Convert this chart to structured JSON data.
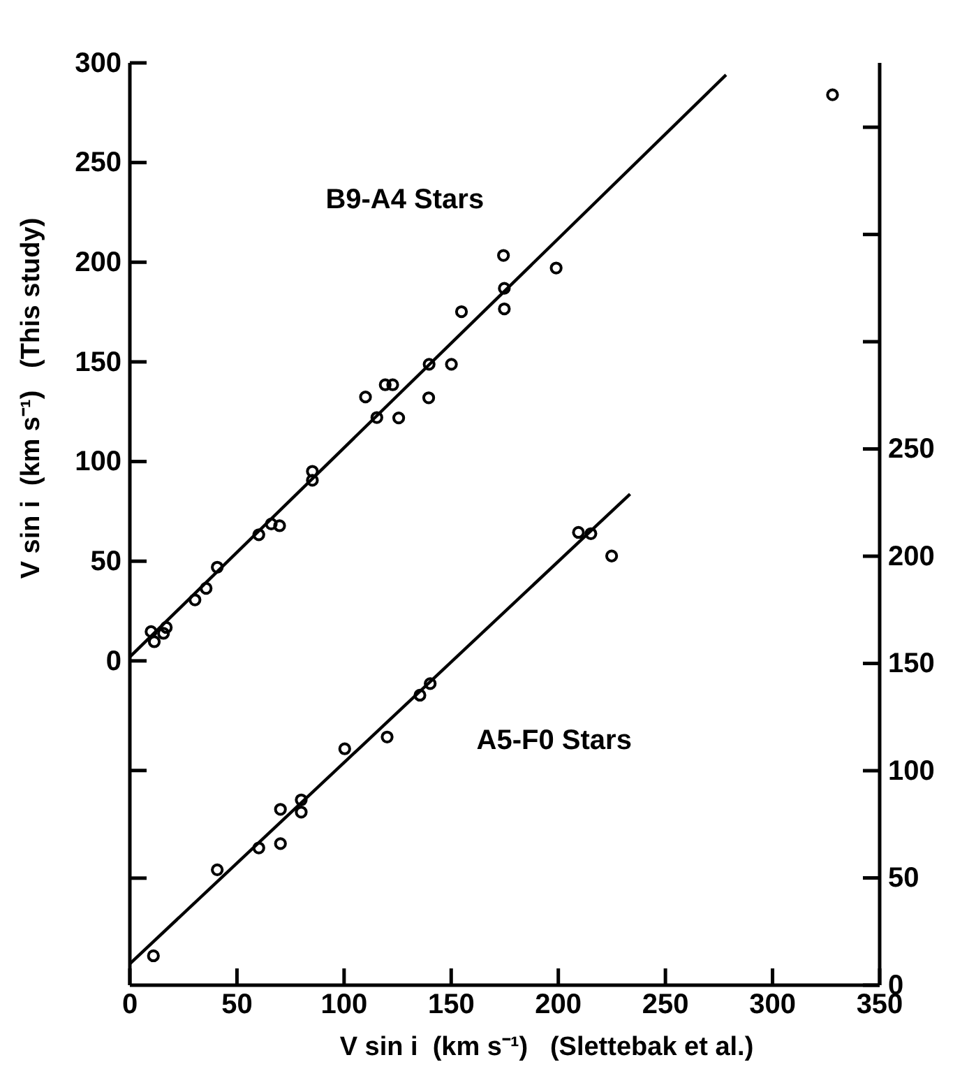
{
  "chart_data": {
    "type": "scatter",
    "xlabel": "V sin i  (km s⁻¹)   (Slettebak et al.)",
    "ylabel": "V sin i  (km s⁻¹)   (This study)",
    "xlim": [
      0,
      350
    ],
    "xticks": [
      0,
      50,
      100,
      150,
      200,
      250,
      300,
      350
    ],
    "ylim": [
      -162.7,
      300
    ],
    "yticks": [
      {
        "value": -109,
        "label": null
      },
      {
        "value": -55,
        "label": null
      },
      0,
      50,
      100,
      150,
      200,
      250,
      300
    ],
    "y2lim": [
      0,
      430
    ],
    "y2ticks": [
      0,
      50,
      100,
      150,
      200,
      250,
      {
        "value": 300,
        "label": null
      },
      {
        "value": 350,
        "label": null
      },
      {
        "value": 400,
        "label": null
      }
    ],
    "marker": "circle",
    "line_style": "solid",
    "grid": false,
    "legend": false,
    "series": [
      {
        "name": "B9-A4 Stars",
        "type": "scatter",
        "color": "#000000",
        "x": [
          174.4,
          174.8,
          174.8,
          154.8,
          139.7,
          150.1,
          119.2,
          122.7,
          110.0,
          139.5,
          115.3,
          125.5,
          85.2,
          85.2,
          60.2,
          66.0,
          69.9,
          40.8,
          35.6,
          30.4,
          9.9,
          11.4,
          15.7,
          17.0,
          199.0,
          328.0
        ],
        "values": [
          203.4,
          186.9,
          176.6,
          175.2,
          148.8,
          148.8,
          138.5,
          138.5,
          132.4,
          132.0,
          122.1,
          121.9,
          95.1,
          90.6,
          63.3,
          68.7,
          67.8,
          47.0,
          36.4,
          30.6,
          14.7,
          9.6,
          13.8,
          16.8,
          197.1,
          284.0
        ]
      },
      {
        "type": "line",
        "marker": "none",
        "color": "#000000",
        "x": [
          0,
          278.3
        ],
        "values": [
          2,
          294
        ]
      },
      {
        "name": "A5-F0 Stars",
        "type": "scatter",
        "axis": "y2",
        "color": "#000000",
        "x": [
          11.0,
          40.8,
          60.2,
          70.3,
          70.3,
          80.0,
          80.0,
          100.3,
          120.1,
          135.4,
          140.2,
          209.4,
          215.2,
          224.9
        ],
        "values": [
          13.7,
          53.8,
          64.0,
          66.0,
          82.0,
          86.4,
          80.7,
          110.2,
          115.7,
          135.2,
          140.6,
          211.1,
          210.5,
          200.1
        ]
      },
      {
        "type": "line",
        "marker": "none",
        "axis": "y2",
        "color": "#000000",
        "x": [
          0,
          233.5
        ],
        "values": [
          10,
          229
        ]
      }
    ]
  }
}
